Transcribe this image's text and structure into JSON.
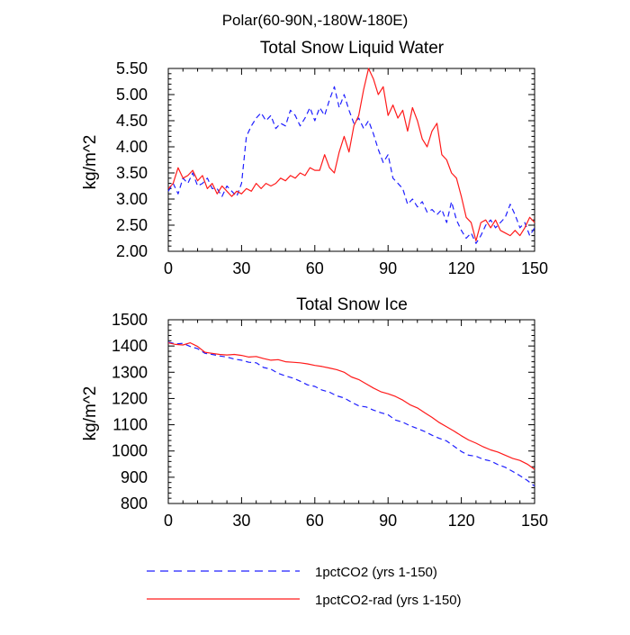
{
  "figure": {
    "title": "Polar(60-90N,-180W-180E)"
  },
  "colors": {
    "series_a": "#1f1fff",
    "series_b": "#ff1a1a",
    "axis": "#000000",
    "background": "#ffffff"
  },
  "legend": {
    "placement": "bottom",
    "entries": [
      {
        "label": "1pctCO2 (yrs 1-150)",
        "color": "#1f1fff",
        "style": "dashed"
      },
      {
        "label": "1pctCO2-rad (yrs 1-150)",
        "color": "#ff1a1a",
        "style": "solid"
      }
    ]
  },
  "chart_data": [
    {
      "type": "line",
      "title": "Total Snow Liquid Water",
      "xlabel": "",
      "ylabel": "kg/m^2",
      "xlim": [
        0,
        150
      ],
      "ylim": [
        2.0,
        5.5
      ],
      "xticks": [
        0,
        30,
        60,
        90,
        120,
        150
      ],
      "xtick_labels": [
        "0",
        "30",
        "60",
        "90",
        "120",
        "150"
      ],
      "yticks": [
        2.0,
        2.5,
        3.0,
        3.5,
        4.0,
        4.5,
        5.0,
        5.5
      ],
      "ytick_labels": [
        "2.00",
        "2.50",
        "3.00",
        "3.50",
        "4.00",
        "4.50",
        "5.00",
        "5.50"
      ],
      "grid": false,
      "series": [
        {
          "name": "1pctCO2 (yrs 1-150)",
          "color": "#1f1fff",
          "style": "dashed",
          "x": [
            0,
            2,
            4,
            6,
            8,
            10,
            12,
            14,
            16,
            18,
            20,
            22,
            24,
            26,
            28,
            30,
            32,
            34,
            36,
            38,
            40,
            42,
            44,
            46,
            48,
            50,
            52,
            54,
            56,
            58,
            60,
            62,
            64,
            66,
            68,
            70,
            72,
            74,
            76,
            78,
            80,
            82,
            84,
            86,
            88,
            90,
            92,
            94,
            96,
            98,
            100,
            102,
            104,
            106,
            108,
            110,
            112,
            114,
            116,
            118,
            120,
            122,
            124,
            126,
            128,
            130,
            132,
            134,
            136,
            138,
            140,
            142,
            144,
            146,
            148,
            150
          ],
          "y": [
            3.15,
            3.3,
            3.1,
            3.4,
            3.3,
            3.5,
            3.25,
            3.3,
            3.4,
            3.2,
            3.2,
            3.05,
            3.25,
            3.15,
            3.05,
            3.3,
            4.2,
            4.4,
            4.55,
            4.65,
            4.5,
            4.6,
            4.35,
            4.45,
            4.4,
            4.7,
            4.6,
            4.4,
            4.55,
            4.75,
            4.5,
            4.75,
            4.6,
            4.9,
            5.15,
            4.75,
            5.0,
            4.7,
            4.45,
            4.55,
            4.35,
            4.5,
            4.25,
            3.95,
            3.7,
            3.85,
            3.4,
            3.3,
            3.2,
            2.9,
            3.0,
            2.85,
            2.95,
            2.75,
            2.8,
            2.7,
            2.8,
            2.55,
            2.95,
            2.6,
            2.4,
            2.25,
            2.35,
            2.15,
            2.3,
            2.5,
            2.6,
            2.45,
            2.55,
            2.65,
            2.9,
            2.7,
            2.45,
            2.55,
            2.3,
            2.45
          ]
        },
        {
          "name": "1pctCO2-rad (yrs 1-150)",
          "color": "#ff1a1a",
          "style": "solid",
          "x": [
            0,
            2,
            4,
            6,
            8,
            10,
            12,
            14,
            16,
            18,
            20,
            22,
            24,
            26,
            28,
            30,
            32,
            34,
            36,
            38,
            40,
            42,
            44,
            46,
            48,
            50,
            52,
            54,
            56,
            58,
            60,
            62,
            64,
            66,
            68,
            70,
            72,
            74,
            76,
            78,
            80,
            82,
            84,
            86,
            88,
            90,
            92,
            94,
            96,
            98,
            100,
            102,
            104,
            106,
            108,
            110,
            112,
            114,
            116,
            118,
            120,
            122,
            124,
            126,
            128,
            130,
            132,
            134,
            136,
            138,
            140,
            142,
            144,
            146,
            148,
            150
          ],
          "y": [
            3.2,
            3.3,
            3.6,
            3.4,
            3.45,
            3.55,
            3.35,
            3.45,
            3.2,
            3.3,
            3.1,
            3.25,
            3.15,
            3.05,
            3.15,
            3.1,
            3.2,
            3.15,
            3.3,
            3.2,
            3.3,
            3.25,
            3.3,
            3.4,
            3.35,
            3.45,
            3.4,
            3.5,
            3.45,
            3.6,
            3.55,
            3.55,
            3.85,
            3.6,
            3.5,
            3.9,
            4.2,
            3.9,
            4.4,
            4.6,
            5.1,
            5.5,
            5.3,
            5.0,
            5.15,
            4.6,
            4.8,
            4.55,
            4.7,
            4.3,
            4.75,
            4.5,
            4.15,
            4.0,
            4.3,
            4.45,
            3.85,
            3.75,
            3.5,
            3.4,
            3.05,
            2.65,
            2.55,
            2.2,
            2.55,
            2.6,
            2.45,
            2.6,
            2.4,
            2.35,
            2.3,
            2.4,
            2.3,
            2.45,
            2.65,
            2.55
          ]
        }
      ]
    },
    {
      "type": "line",
      "title": "Total Snow Ice",
      "xlabel": "",
      "ylabel": "kg/m^2",
      "xlim": [
        0,
        150
      ],
      "ylim": [
        800,
        1500
      ],
      "xticks": [
        0,
        30,
        60,
        90,
        120,
        150
      ],
      "xtick_labels": [
        "0",
        "30",
        "60",
        "90",
        "120",
        "150"
      ],
      "yticks": [
        800,
        900,
        1000,
        1100,
        1200,
        1300,
        1400,
        1500
      ],
      "ytick_labels": [
        "800",
        "900",
        "1000",
        "1100",
        "1200",
        "1300",
        "1400",
        "1500"
      ],
      "grid": false,
      "series": [
        {
          "name": "1pctCO2 (yrs 1-150)",
          "color": "#1f1fff",
          "style": "dashed",
          "x": [
            0,
            3,
            6,
            9,
            12,
            15,
            18,
            21,
            24,
            27,
            30,
            33,
            36,
            39,
            42,
            45,
            48,
            51,
            54,
            57,
            60,
            63,
            66,
            69,
            72,
            75,
            78,
            81,
            84,
            87,
            90,
            93,
            96,
            99,
            102,
            105,
            108,
            111,
            114,
            117,
            120,
            123,
            126,
            129,
            132,
            135,
            138,
            141,
            144,
            147,
            150
          ],
          "y": [
            1415,
            1408,
            1410,
            1398,
            1390,
            1372,
            1368,
            1362,
            1358,
            1350,
            1346,
            1338,
            1336,
            1318,
            1312,
            1296,
            1286,
            1278,
            1266,
            1252,
            1246,
            1232,
            1224,
            1210,
            1202,
            1186,
            1172,
            1168,
            1156,
            1146,
            1138,
            1118,
            1110,
            1096,
            1086,
            1074,
            1060,
            1048,
            1038,
            1018,
            998,
            984,
            980,
            968,
            962,
            948,
            938,
            922,
            906,
            888,
            866
          ]
        },
        {
          "name": "1pctCO2-rad (yrs 1-150)",
          "color": "#ff1a1a",
          "style": "solid",
          "x": [
            0,
            3,
            6,
            9,
            12,
            15,
            18,
            21,
            24,
            27,
            30,
            33,
            36,
            39,
            42,
            45,
            48,
            51,
            54,
            57,
            60,
            63,
            66,
            69,
            72,
            75,
            78,
            81,
            84,
            87,
            90,
            93,
            96,
            99,
            102,
            105,
            108,
            111,
            114,
            117,
            120,
            123,
            126,
            129,
            132,
            135,
            138,
            141,
            144,
            147,
            150
          ],
          "y": [
            1412,
            1406,
            1404,
            1412,
            1398,
            1376,
            1372,
            1368,
            1366,
            1368,
            1364,
            1358,
            1360,
            1352,
            1346,
            1348,
            1340,
            1338,
            1336,
            1332,
            1326,
            1322,
            1316,
            1310,
            1300,
            1282,
            1272,
            1256,
            1240,
            1226,
            1218,
            1208,
            1194,
            1176,
            1164,
            1146,
            1128,
            1108,
            1092,
            1076,
            1058,
            1042,
            1030,
            1016,
            1004,
            996,
            984,
            972,
            964,
            950,
            930
          ]
        }
      ]
    }
  ]
}
